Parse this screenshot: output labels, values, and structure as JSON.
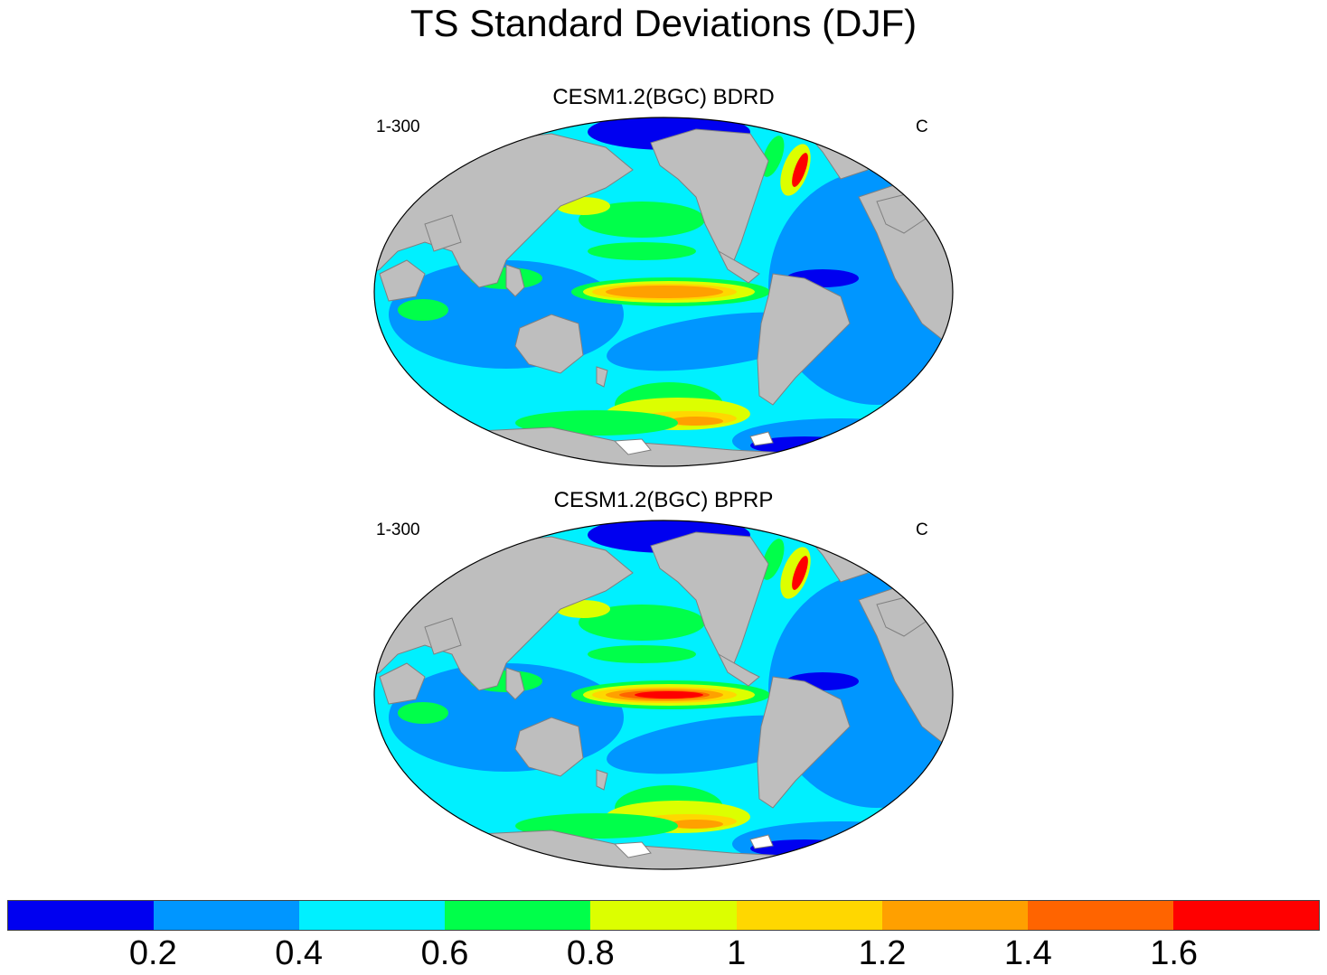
{
  "title": "TS Standard Deviations (DJF)",
  "panels": [
    {
      "title": "CESM1.2(BGC) BDRD",
      "left_label": "1-300",
      "right_label": "C",
      "variant": "bdrd"
    },
    {
      "title": "CESM1.2(BGC) BPRP",
      "left_label": "1-300",
      "right_label": "C",
      "variant": "bprp"
    }
  ],
  "colorbar": {
    "colors": [
      "#0000f0",
      "#0096ff",
      "#00f0ff",
      "#00ff4a",
      "#dcff00",
      "#ffd700",
      "#ffa000",
      "#ff6400",
      "#ff0000"
    ],
    "tick_labels": [
      "0.2",
      "0.4",
      "0.6",
      "0.8",
      "1",
      "1.2",
      "1.4",
      "1.6"
    ]
  },
  "colors": {
    "land": "#bebebe",
    "ice_shelf": "#ffffff",
    "border": "#000000"
  }
}
